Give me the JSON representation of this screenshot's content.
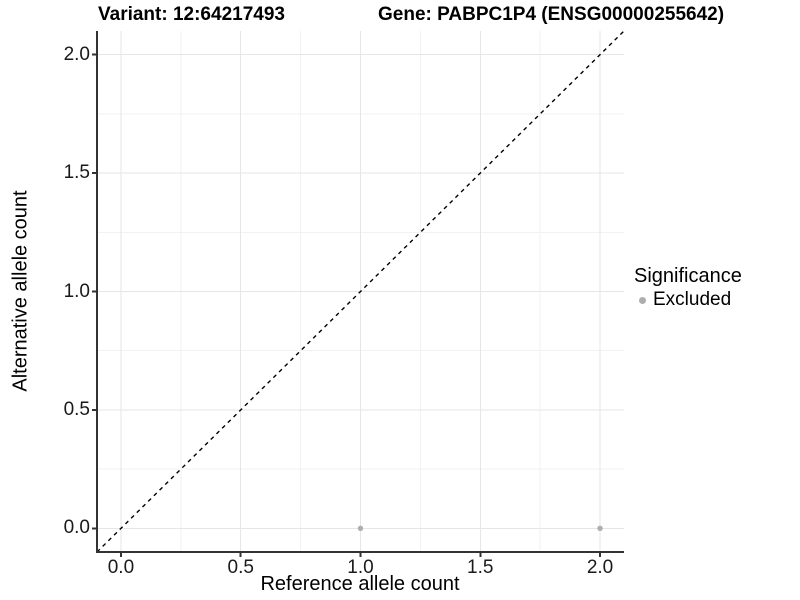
{
  "header": {
    "variant_title": "Variant: 12:64217493",
    "gene_title": "Gene: PABPC1P4 (ENSG00000255642)"
  },
  "legend": {
    "title": "Significance",
    "items": [
      {
        "label": "Excluded",
        "color": "#aeaeae"
      }
    ]
  },
  "chart_data": {
    "type": "scatter",
    "title": "Variant: 12:64217493 / Gene: PABPC1P4 (ENSG00000255642)",
    "xlabel": "Reference allele count",
    "ylabel": "Alternative allele count",
    "xlim": [
      -0.1,
      2.1
    ],
    "ylim": [
      -0.1,
      2.1
    ],
    "x_ticks": [
      0.0,
      0.5,
      1.0,
      1.5,
      2.0
    ],
    "y_ticks": [
      0.0,
      0.5,
      1.0,
      1.5,
      2.0
    ],
    "x_tick_labels": [
      "0.0",
      "0.5",
      "1.0",
      "1.5",
      "2.0"
    ],
    "y_tick_labels": [
      "0.0",
      "0.5",
      "1.0",
      "1.5",
      "2.0"
    ],
    "grid": true,
    "minor_grid": true,
    "legend_position": "right",
    "series": [
      {
        "name": "Excluded",
        "marker": "circle",
        "color": "#aeaeae",
        "points": [
          [
            1.0,
            0.0
          ],
          [
            2.0,
            0.0
          ]
        ]
      }
    ],
    "reference_line": {
      "type": "identity y=x",
      "style": "dashed",
      "color": "#000000"
    }
  },
  "colors": {
    "background": "#ffffff",
    "grid_major": "#e6e6e6",
    "grid_minor": "#f2f2f2",
    "axis_line": "#333333",
    "tick_text": "#1a1a1a",
    "point": "#aeaeae",
    "dashed_line": "#000000"
  }
}
